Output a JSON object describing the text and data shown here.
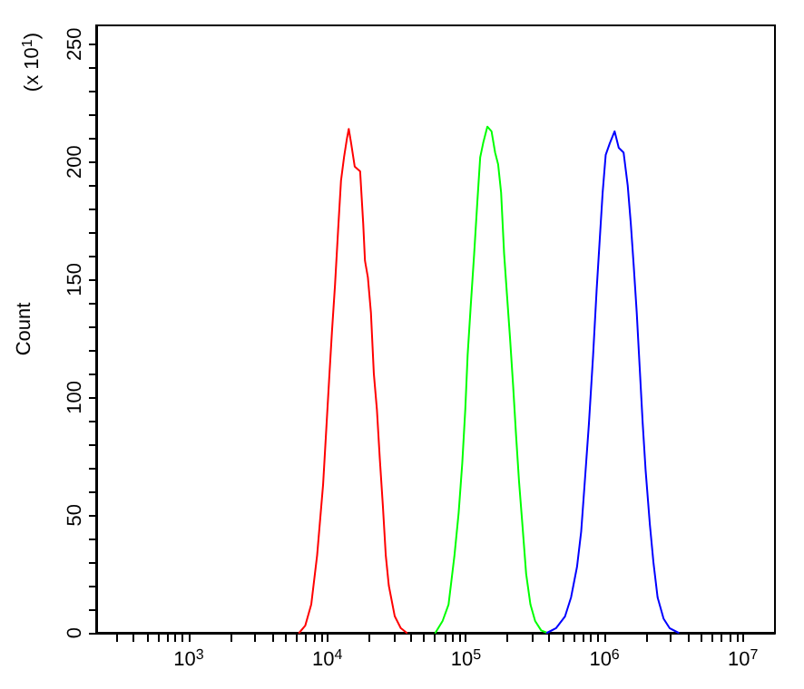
{
  "chart_data": {
    "type": "line",
    "ylabel": "Count",
    "annotations": [
      "(x 10$^{1}$)"
    ],
    "log": "x",
    "grid": false,
    "marker": "none",
    "line_style": "solid",
    "xlim": [
      215,
      17000000
    ],
    "ylim": [
      0,
      258
    ],
    "xticks": [
      {
        "value": 300,
        "label": null
      },
      {
        "value": 400,
        "label": null
      },
      {
        "value": 500,
        "label": null
      },
      {
        "value": 600,
        "label": null
      },
      {
        "value": 700,
        "label": null
      },
      {
        "value": 800,
        "label": null
      },
      {
        "value": 900,
        "label": null
      },
      {
        "value": 1000,
        "label": "10$^{3}$"
      },
      {
        "value": 2000,
        "label": null
      },
      {
        "value": 3000,
        "label": null
      },
      {
        "value": 4000,
        "label": null
      },
      {
        "value": 5000,
        "label": null
      },
      {
        "value": 6000,
        "label": null
      },
      {
        "value": 7000,
        "label": null
      },
      {
        "value": 8000,
        "label": null
      },
      {
        "value": 9000,
        "label": null
      },
      {
        "value": 10000,
        "label": "10$^{4}$"
      },
      {
        "value": 20000,
        "label": null
      },
      {
        "value": 30000,
        "label": null
      },
      {
        "value": 40000,
        "label": null
      },
      {
        "value": 50000,
        "label": null
      },
      {
        "value": 60000,
        "label": null
      },
      {
        "value": 70000,
        "label": null
      },
      {
        "value": 80000,
        "label": null
      },
      {
        "value": 90000,
        "label": null
      },
      {
        "value": 100000,
        "label": "10$^{5}$"
      },
      {
        "value": 200000,
        "label": null
      },
      {
        "value": 300000,
        "label": null
      },
      {
        "value": 400000,
        "label": null
      },
      {
        "value": 500000,
        "label": null
      },
      {
        "value": 600000,
        "label": null
      },
      {
        "value": 700000,
        "label": null
      },
      {
        "value": 800000,
        "label": null
      },
      {
        "value": 900000,
        "label": null
      },
      {
        "value": 1000000,
        "label": "10$^{6}$"
      },
      {
        "value": 2000000,
        "label": null
      },
      {
        "value": 3000000,
        "label": null
      },
      {
        "value": 4000000,
        "label": null
      },
      {
        "value": 5000000,
        "label": null
      },
      {
        "value": 6000000,
        "label": null
      },
      {
        "value": 7000000,
        "label": null
      },
      {
        "value": 8000000,
        "label": null
      },
      {
        "value": 9000000,
        "label": null
      },
      {
        "value": 10000000,
        "label": "10$^{7}$"
      }
    ],
    "yticks": [
      0,
      {
        "value": 10,
        "label": null
      },
      {
        "value": 20,
        "label": null
      },
      {
        "value": 30,
        "label": null
      },
      {
        "value": 40,
        "label": null
      },
      50,
      {
        "value": 60,
        "label": null
      },
      {
        "value": 70,
        "label": null
      },
      {
        "value": 80,
        "label": null
      },
      {
        "value": 90,
        "label": null
      },
      100,
      {
        "value": 110,
        "label": null
      },
      {
        "value": 120,
        "label": null
      },
      {
        "value": 130,
        "label": null
      },
      {
        "value": 140,
        "label": null
      },
      150,
      {
        "value": 160,
        "label": null
      },
      {
        "value": 170,
        "label": null
      },
      {
        "value": 180,
        "label": null
      },
      {
        "value": 190,
        "label": null
      },
      200,
      {
        "value": 210,
        "label": null
      },
      {
        "value": 220,
        "label": null
      },
      {
        "value": 230,
        "label": null
      },
      {
        "value": 240,
        "label": null
      },
      250
    ],
    "series": [
      {
        "color": "#ff0000",
        "x": [
          6270,
          6930,
          7660,
          8450,
          9330,
          10300,
          10810,
          11380,
          11970,
          12560,
          13210,
          13870,
          14290,
          14860,
          15780,
          17260,
          18160,
          18710,
          19630,
          20650,
          21680,
          22800,
          23930,
          25180,
          26420,
          27800,
          30690,
          33880,
          37410
        ],
        "values": [
          0,
          3,
          12,
          33,
          63,
          107,
          128,
          148,
          171,
          192,
          202,
          210,
          214,
          208,
          198,
          196,
          174,
          158,
          151,
          136,
          110,
          95,
          74,
          54,
          33,
          20,
          7,
          2,
          0
        ]
      },
      {
        "color": "#00ff00",
        "x": [
          60260,
          67920,
          74990,
          82790,
          88720,
          94190,
          99080,
          103000,
          108200,
          114800,
          120700,
          126900,
          133300,
          142900,
          153200,
          162600,
          170900,
          179600,
          188800,
          198300,
          208400,
          219300,
          230200,
          242100,
          254300,
          272300,
          292400,
          316200,
          349400,
          385500
        ],
        "values": [
          0,
          5,
          12,
          33,
          51,
          72,
          95,
          118,
          138,
          161,
          182,
          202,
          208,
          215,
          213,
          204,
          199,
          187,
          161,
          143,
          125,
          105,
          84,
          64,
          48,
          25,
          12,
          5,
          1,
          0
        ]
      },
      {
        "color": "#0000ff",
        "x": [
          385500,
          447700,
          519900,
          574100,
          633900,
          679400,
          721100,
          773000,
          828500,
          879000,
          924700,
          970600,
          1021000,
          1094000,
          1184000,
          1268000,
          1374000,
          1472000,
          1549000,
          1626000,
          1710000,
          1795000,
          1888000,
          1982000,
          2127000,
          2256000,
          2419000,
          2673000,
          2951000,
          3420000
        ],
        "values": [
          0,
          2,
          7,
          15,
          28,
          43,
          64,
          89,
          118,
          146,
          167,
          187,
          203,
          208,
          213,
          206,
          204,
          190,
          174,
          156,
          136,
          113,
          89,
          69,
          46,
          30,
          15,
          6,
          2,
          0
        ]
      }
    ]
  }
}
